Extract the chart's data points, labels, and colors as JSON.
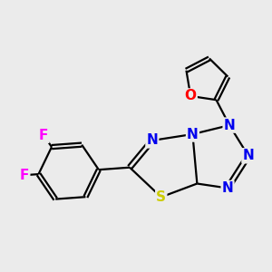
{
  "background_color": "#ebebeb",
  "bond_color": "#000000",
  "bond_width": 1.6,
  "atom_colors": {
    "N": "#0000EE",
    "S": "#cccc00",
    "O": "#FF0000",
    "F": "#FF00FF",
    "C": "#000000"
  },
  "font_size": 11
}
